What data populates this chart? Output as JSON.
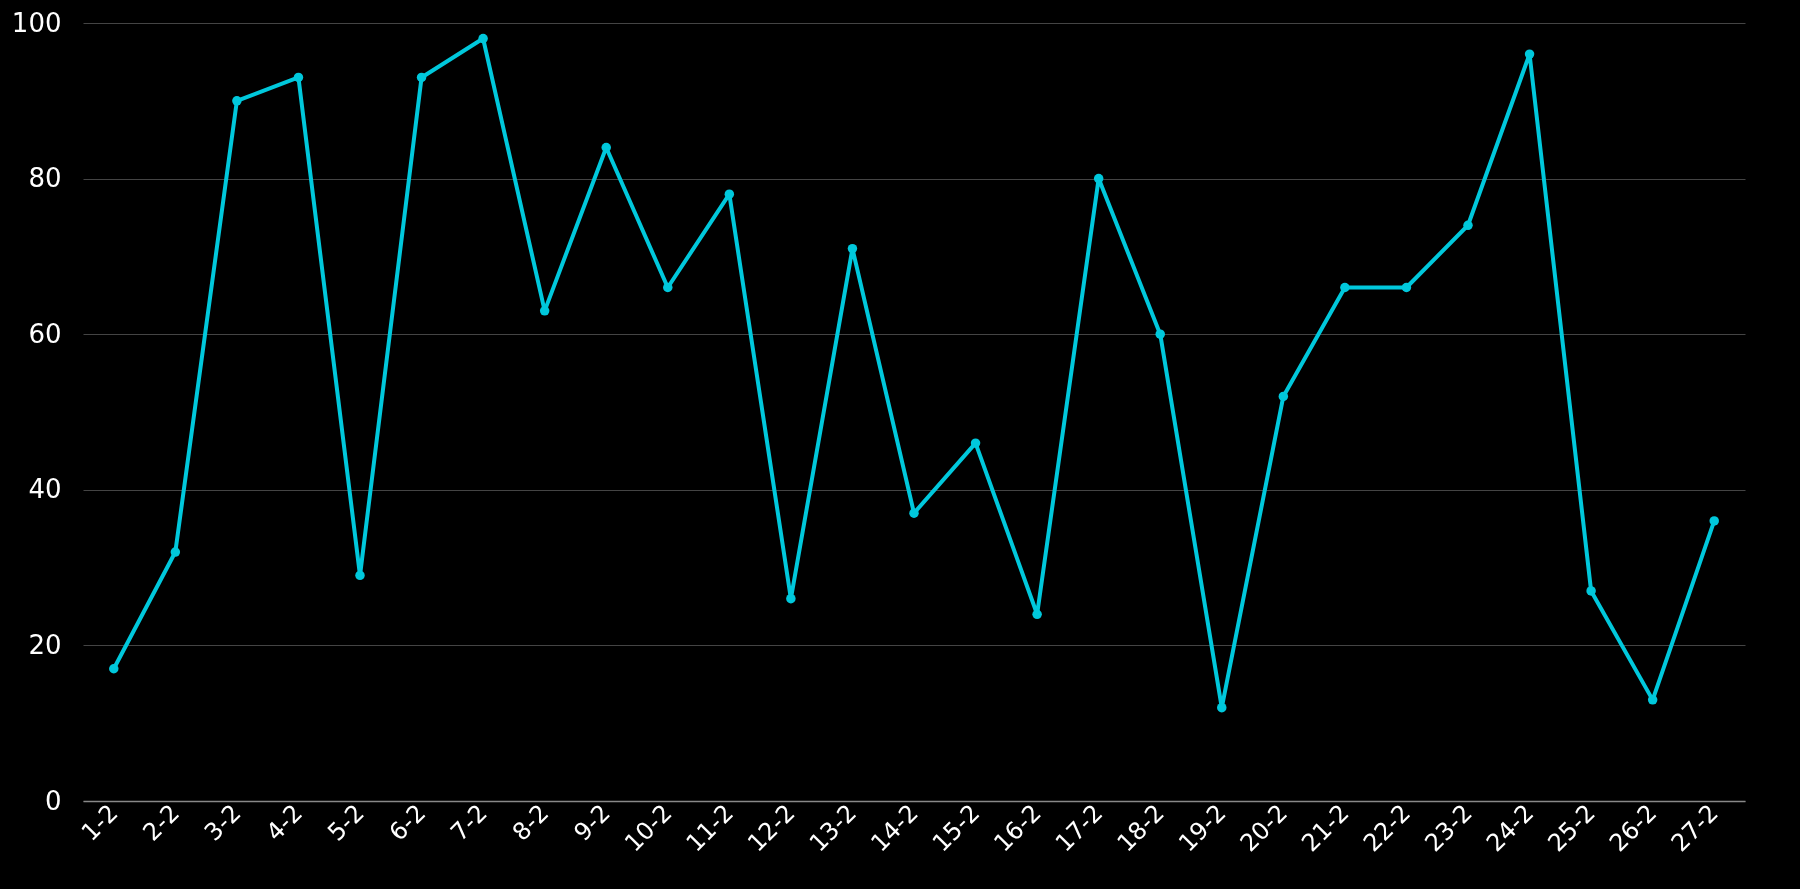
{
  "chart_data": {
    "type": "line",
    "categories": [
      "1-2",
      "2-2",
      "3-2",
      "4-2",
      "5-2",
      "6-2",
      "7-2",
      "8-2",
      "9-2",
      "10-2",
      "11-2",
      "12-2",
      "13-2",
      "14-2",
      "15-2",
      "16-2",
      "17-2",
      "18-2",
      "19-2",
      "20-2",
      "21-2",
      "22-2",
      "23-2",
      "24-2",
      "25-2",
      "26-2",
      "27-2"
    ],
    "series": [
      {
        "color": "#00c8dc",
        "values": [
          17,
          32,
          90,
          93,
          29,
          93,
          98,
          63,
          84,
          66,
          78,
          26,
          71,
          37,
          46,
          24,
          80,
          60,
          12,
          52,
          66,
          66,
          74,
          96,
          27,
          13,
          36
        ]
      }
    ],
    "ylim": [
      0,
      100
    ],
    "yticks": [
      0,
      20,
      40,
      60,
      80,
      100
    ],
    "grid": "y",
    "marker": "circle"
  }
}
